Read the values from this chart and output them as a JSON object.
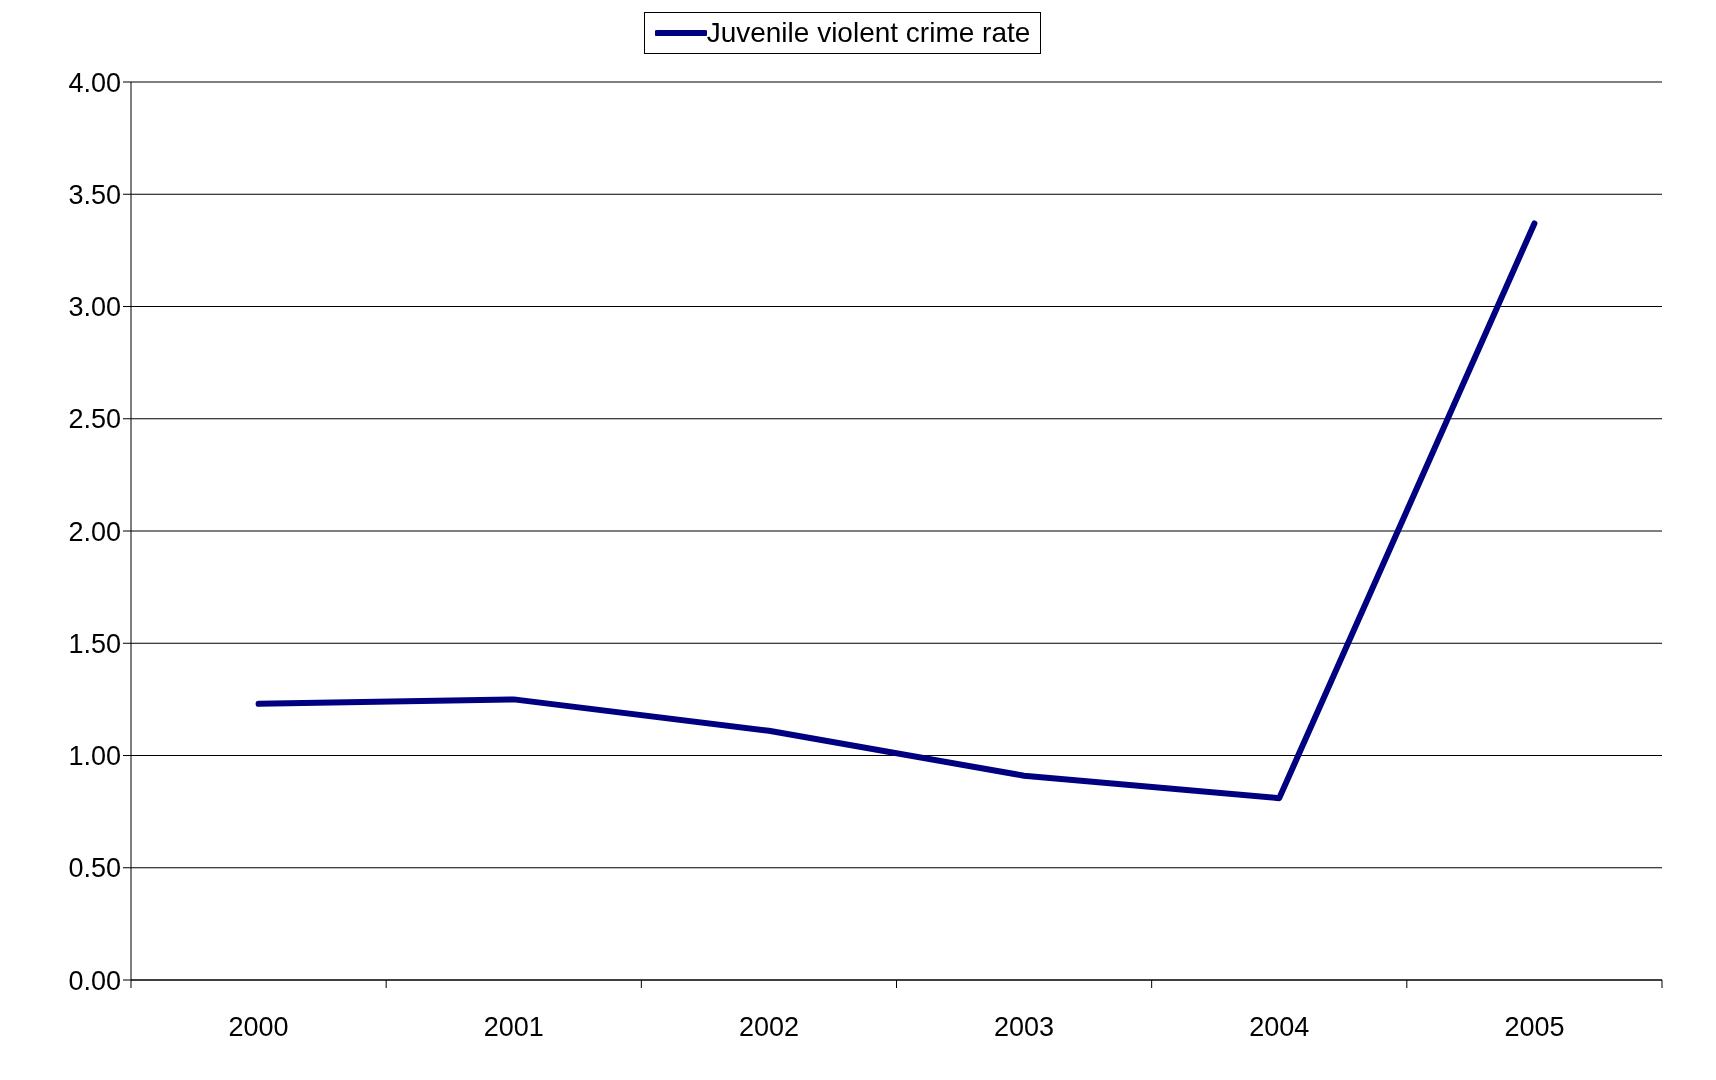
{
  "chart_data": {
    "type": "line",
    "categories": [
      "2000",
      "2001",
      "2002",
      "2003",
      "2004",
      "2005"
    ],
    "series": [
      {
        "name": "Juvenile violent crime rate",
        "color": "#000080",
        "values": [
          1.23,
          1.25,
          1.11,
          0.91,
          0.81,
          3.37
        ]
      }
    ],
    "ylim": [
      0,
      4
    ],
    "yticks": [
      {
        "value": 0,
        "label": "0.00"
      },
      {
        "value": 0.5,
        "label": "0.50"
      },
      {
        "value": 1,
        "label": "1.00"
      },
      {
        "value": 1.5,
        "label": "1.50"
      },
      {
        "value": 2,
        "label": "2.00"
      },
      {
        "value": 2.5,
        "label": "2.50"
      },
      {
        "value": 3,
        "label": "3.00"
      },
      {
        "value": 3.5,
        "label": "3.50"
      },
      {
        "value": 4,
        "label": "4.00"
      }
    ],
    "grid": "y",
    "legend": "top",
    "marker": "none",
    "line_style": "solid"
  }
}
